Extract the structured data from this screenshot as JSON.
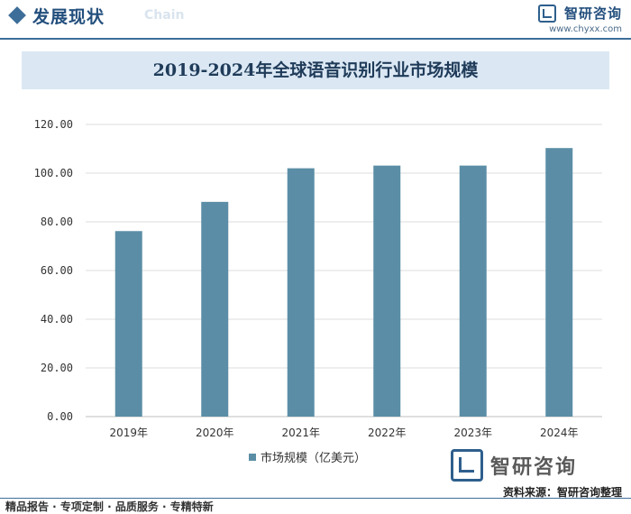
{
  "header": {
    "section_title": "发展现状",
    "section_sub": "Chain",
    "brand_name": "智研咨询",
    "brand_url": "www.chyxx.com"
  },
  "chart_data": {
    "type": "bar",
    "title": "2019-2024年全球语音识别行业市场规模",
    "categories": [
      "2019年",
      "2020年",
      "2021年",
      "2022年",
      "2023年",
      "2024年"
    ],
    "series": [
      {
        "name": "市场规模（亿美元）",
        "values": [
          76.2,
          88.2,
          102.0,
          103.1,
          103.1,
          110.3
        ]
      }
    ],
    "ylim": [
      0,
      120
    ],
    "yticks": [
      "0.00",
      "20.00",
      "40.00",
      "60.00",
      "80.00",
      "100.00",
      "120.00"
    ],
    "grid": true,
    "legend_position": "bottom-center",
    "bar_color": "#5b8ea6"
  },
  "footer": {
    "logo_text": "智研咨询",
    "source": "资料来源：智研咨询整理",
    "tagline": "精品报告 · 专项定制 · 品质服务 · 专精特新"
  }
}
